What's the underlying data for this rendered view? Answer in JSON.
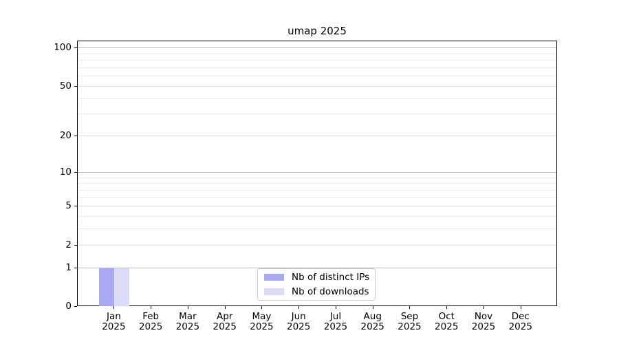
{
  "chart_data": {
    "type": "bar",
    "title": "umap 2025",
    "categories": [
      "Jan",
      "Feb",
      "Mar",
      "Apr",
      "May",
      "Jun",
      "Jul",
      "Aug",
      "Sep",
      "Oct",
      "Nov",
      "Dec"
    ],
    "category_year": "2025",
    "series": [
      {
        "name": "Nb of distinct IPs",
        "color": "#a9a9f2",
        "values": [
          1,
          0,
          0,
          0,
          0,
          0,
          0,
          0,
          0,
          0,
          0,
          0
        ]
      },
      {
        "name": "Nb of downloads",
        "color": "#dbdbf8",
        "values": [
          1,
          0,
          0,
          0,
          0,
          0,
          0,
          0,
          0,
          0,
          0,
          0
        ]
      }
    ],
    "yscale": "log1p",
    "ylim": [
      0,
      114
    ],
    "y_major_ticks": [
      0,
      1,
      2,
      5,
      10,
      20,
      50,
      100
    ],
    "y_tick_labels": [
      "0",
      "1",
      "2",
      "5",
      "10",
      "20",
      "50",
      "100"
    ],
    "y_decade_ticks": [
      1,
      10,
      100
    ],
    "y_minor_gridlines": [
      3,
      4,
      6,
      7,
      8,
      9,
      30,
      40,
      60,
      70,
      80,
      90
    ],
    "grid": "horizontal",
    "legend_position": "lower center"
  },
  "colors": {
    "background": "#ffffff",
    "spine": "#000000",
    "grid_major": "#b8b8b8",
    "grid_mid": "#e0e0e0",
    "grid_minor": "#ebebeb",
    "legend_border": "#cccccc",
    "text": "#000000"
  }
}
